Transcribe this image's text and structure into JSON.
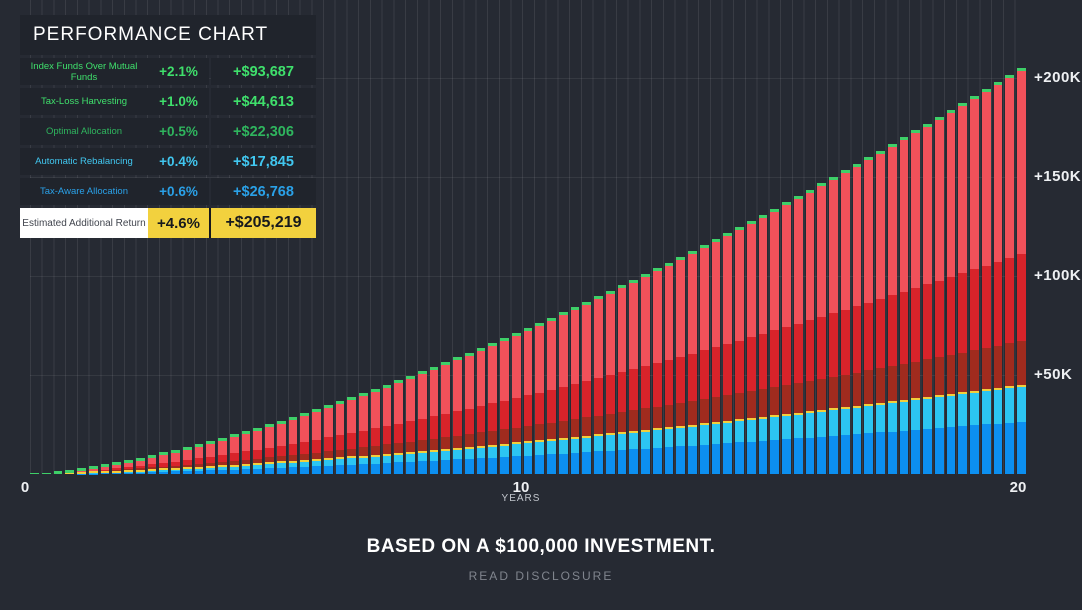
{
  "panel": {
    "title": "PERFORMANCE CHART",
    "rows": [
      {
        "id": "index-funds-over-mutual-funds",
        "label": "Index Funds Over Mutual Funds",
        "pct": "+2.1%",
        "amount": "+$93,687",
        "color": "#3fe06c"
      },
      {
        "id": "tax-loss-harvesting",
        "label": "Tax-Loss Harvesting",
        "pct": "+1.0%",
        "amount": "+$44,613",
        "color": "#3fe06c"
      },
      {
        "id": "optimal-allocation",
        "label": "Optimal Allocation",
        "pct": "+0.5%",
        "amount": "+$22,306",
        "color": "#2fb55e"
      },
      {
        "id": "automatic-rebalancing",
        "label": "Automatic Rebalancing",
        "pct": "+0.4%",
        "amount": "+$17,845",
        "color": "#41c7f0"
      },
      {
        "id": "tax-aware-allocation",
        "label": "Tax-Aware Allocation",
        "pct": "+0.6%",
        "amount": "+$26,768",
        "color": "#2aa1e8"
      }
    ],
    "highlight": {
      "label": "Estimated Additional Return",
      "pct": "+4.6%",
      "amount": "+$205,219"
    }
  },
  "chart_data": {
    "type": "bar",
    "stacked": true,
    "title": "Performance Chart — estimated additional return on a $100,000 investment over 20 years",
    "bar_count": 85,
    "years_span": 20,
    "growth_exponent": 1.5,
    "total_at_year_20": 205219,
    "series": [
      {
        "name": "Tax-Aware Allocation",
        "value_at_year_20": 26768,
        "color": "#0c8ff0"
      },
      {
        "name": "Automatic Rebalancing",
        "value_at_year_20": 17845,
        "color": "#2cc5f2"
      },
      {
        "name": "Optimal Allocation",
        "value_at_year_20": 22306,
        "color": "#a02b1e"
      },
      {
        "name": "Tax-Loss Harvesting",
        "value_at_year_20": 44613,
        "color": "#d8232a"
      },
      {
        "name": "Index Funds Over Mutual Funds",
        "value_at_year_20": 93687,
        "color": "#f1515a"
      }
    ],
    "accent_slivers": {
      "yellow": "#f2cf3c",
      "green": "#3ecf68"
    },
    "totals_by_year": [
      2294,
      6489,
      11916,
      18352,
      25652,
      33722,
      42494,
      51917,
      61949,
      72555,
      83708,
      95383,
      107558,
      120214,
      133336,
      146910,
      160921,
      175355,
      190202,
      205219
    ],
    "y_ticks": [
      {
        "label": "+200K",
        "value": 200000
      },
      {
        "label": "+150K",
        "value": 150000
      },
      {
        "label": "+100K",
        "value": 100000
      },
      {
        "label": "+50K",
        "value": 50000
      }
    ],
    "x_ticks": [
      {
        "label": "0",
        "year": 0
      },
      {
        "label": "10",
        "year": 10
      },
      {
        "label": "20",
        "year": 20
      }
    ],
    "x_axis_label": "YEARS",
    "grid": true,
    "legend_position": "top-left"
  },
  "footer": {
    "caption": "BASED ON A $100,000 INVESTMENT.",
    "disclosure": "READ DISCLOSURE"
  }
}
